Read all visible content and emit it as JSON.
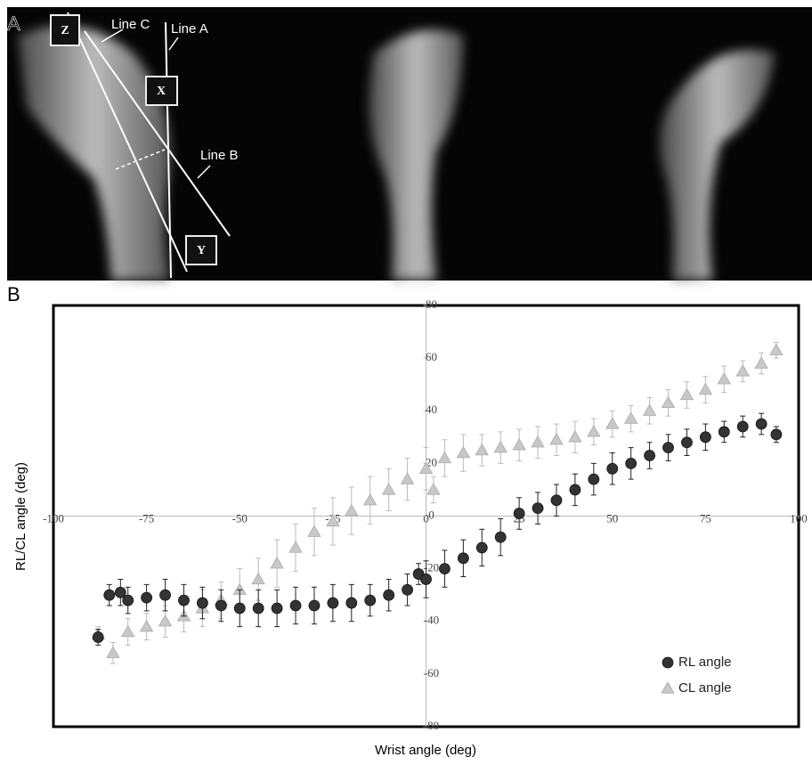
{
  "panel_a": {
    "label": "A",
    "line_labels": [
      "Line C",
      "Line A",
      "Line B"
    ],
    "box_labels": [
      "Z",
      "X",
      "Y"
    ]
  },
  "panel_b": {
    "label": "B"
  },
  "chart_data": {
    "type": "scatter",
    "xlabel": "Wrist angle (deg)",
    "ylabel": "RL/CL angle (deg)",
    "xlim": [
      -100,
      100
    ],
    "ylim": [
      -80,
      80
    ],
    "xticks": [
      -100,
      -75,
      -50,
      -25,
      0,
      25,
      50,
      75,
      100
    ],
    "yticks": [
      -80,
      -60,
      -40,
      -20,
      0,
      20,
      40,
      60,
      80
    ],
    "legend": "lower right",
    "series": [
      {
        "name": "CL angle",
        "color": "#c8c8c8",
        "marker": "triangle",
        "x": [
          -88,
          -84,
          -80,
          -75,
          -70,
          -65,
          -60,
          -55,
          -50,
          -45,
          -40,
          -35,
          -30,
          -25,
          -20,
          -15,
          -10,
          -5,
          0,
          2,
          5,
          10,
          15,
          20,
          25,
          30,
          35,
          40,
          45,
          50,
          55,
          60,
          65,
          70,
          75,
          80,
          85,
          90,
          94
        ],
        "values": [
          -45,
          -52,
          -44,
          -42,
          -40,
          -38,
          -35,
          -32,
          -28,
          -24,
          -18,
          -12,
          -6,
          -2,
          2,
          6,
          10,
          14,
          18,
          10,
          22,
          24,
          25,
          26,
          27,
          28,
          29,
          30,
          32,
          35,
          37,
          40,
          43,
          46,
          48,
          52,
          55,
          58,
          63
        ],
        "errors": [
          3,
          4,
          5,
          5,
          6,
          6,
          7,
          7,
          8,
          8,
          9,
          9,
          9,
          9,
          9,
          9,
          8,
          8,
          8,
          5,
          7,
          7,
          6,
          6,
          6,
          6,
          6,
          6,
          5,
          5,
          5,
          5,
          5,
          5,
          5,
          5,
          4,
          4,
          3
        ]
      },
      {
        "name": "RL angle",
        "color": "#333333",
        "marker": "circle",
        "x": [
          -88,
          -85,
          -82,
          -80,
          -75,
          -70,
          -65,
          -60,
          -55,
          -50,
          -45,
          -40,
          -35,
          -30,
          -25,
          -20,
          -15,
          -10,
          -5,
          -2,
          0,
          5,
          10,
          15,
          20,
          25,
          30,
          35,
          40,
          45,
          50,
          55,
          60,
          65,
          70,
          75,
          80,
          85,
          90,
          94
        ],
        "values": [
          -46,
          -30,
          -29,
          -32,
          -31,
          -30,
          -32,
          -33,
          -34,
          -35,
          -35,
          -35,
          -34,
          -34,
          -33,
          -33,
          -32,
          -30,
          -28,
          -22,
          -24,
          -20,
          -16,
          -12,
          -8,
          1,
          3,
          6,
          10,
          14,
          18,
          20,
          23,
          26,
          28,
          30,
          32,
          34,
          35,
          31
        ],
        "errors": [
          3,
          4,
          5,
          5,
          5,
          6,
          6,
          6,
          6,
          7,
          7,
          7,
          7,
          7,
          7,
          7,
          6,
          6,
          6,
          4,
          7,
          7,
          7,
          7,
          7,
          6,
          6,
          6,
          6,
          6,
          6,
          6,
          5,
          5,
          5,
          5,
          4,
          4,
          4,
          3
        ]
      }
    ]
  }
}
